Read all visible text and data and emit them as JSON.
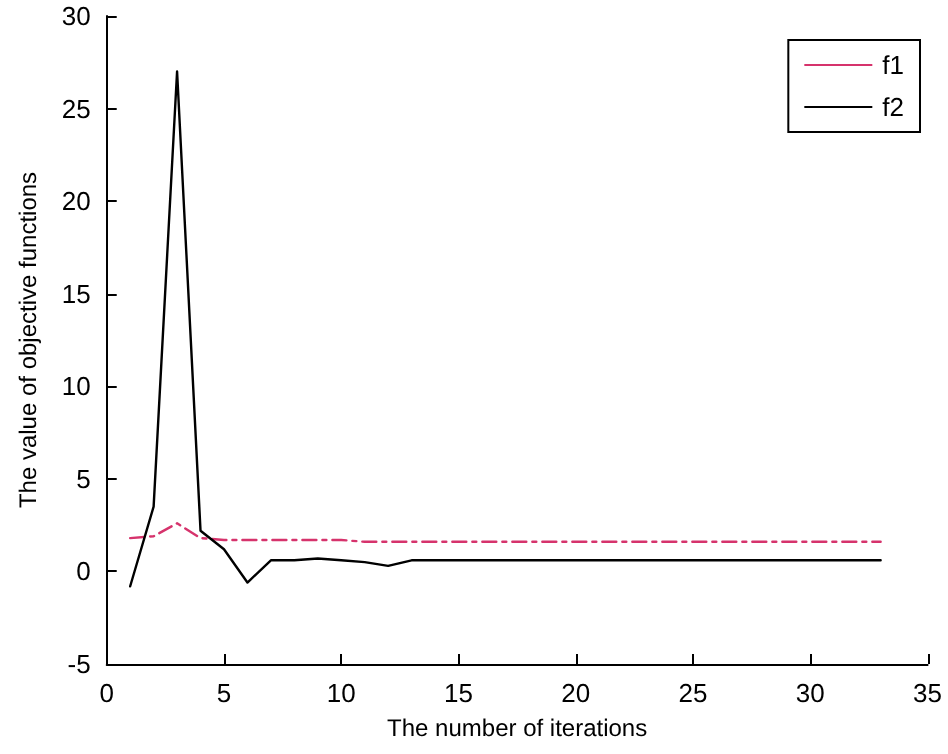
{
  "chart_data": {
    "type": "line",
    "xlabel": "The number of iterations",
    "ylabel": "The value of objective functions",
    "x": [
      1,
      2,
      3,
      4,
      5,
      6,
      7,
      8,
      9,
      10,
      11,
      12,
      13,
      14,
      15,
      16,
      17,
      18,
      19,
      20,
      21,
      22,
      23,
      24,
      25,
      26,
      27,
      28,
      29,
      30,
      31,
      32,
      33
    ],
    "series": [
      {
        "name": "f1",
        "color": "#d6336c",
        "line_style": "dashed",
        "values": [
          1.8,
          1.9,
          2.6,
          1.8,
          1.7,
          1.7,
          1.7,
          1.7,
          1.7,
          1.7,
          1.6,
          1.6,
          1.6,
          1.6,
          1.6,
          1.6,
          1.6,
          1.6,
          1.6,
          1.6,
          1.6,
          1.6,
          1.6,
          1.6,
          1.6,
          1.6,
          1.6,
          1.6,
          1.6,
          1.6,
          1.6,
          1.6,
          1.6
        ]
      },
      {
        "name": "f2",
        "color": "#000000",
        "line_style": "solid",
        "values": [
          -0.8,
          3.5,
          27,
          2.2,
          1.2,
          -0.6,
          0.6,
          0.6,
          0.7,
          0.6,
          0.5,
          0.3,
          0.6,
          0.6,
          0.6,
          0.6,
          0.6,
          0.6,
          0.6,
          0.6,
          0.6,
          0.6,
          0.6,
          0.6,
          0.6,
          0.6,
          0.6,
          0.6,
          0.6,
          0.6,
          0.6,
          0.6,
          0.6
        ]
      }
    ],
    "xlim": [
      0,
      35
    ],
    "xticks": [
      0,
      5,
      10,
      15,
      20,
      25,
      30,
      35
    ],
    "ylim": [
      -5,
      30
    ],
    "yticks": [
      -5,
      0,
      5,
      10,
      15,
      20,
      25,
      30
    ],
    "grid": false,
    "legend": "top right",
    "marker": "none"
  }
}
